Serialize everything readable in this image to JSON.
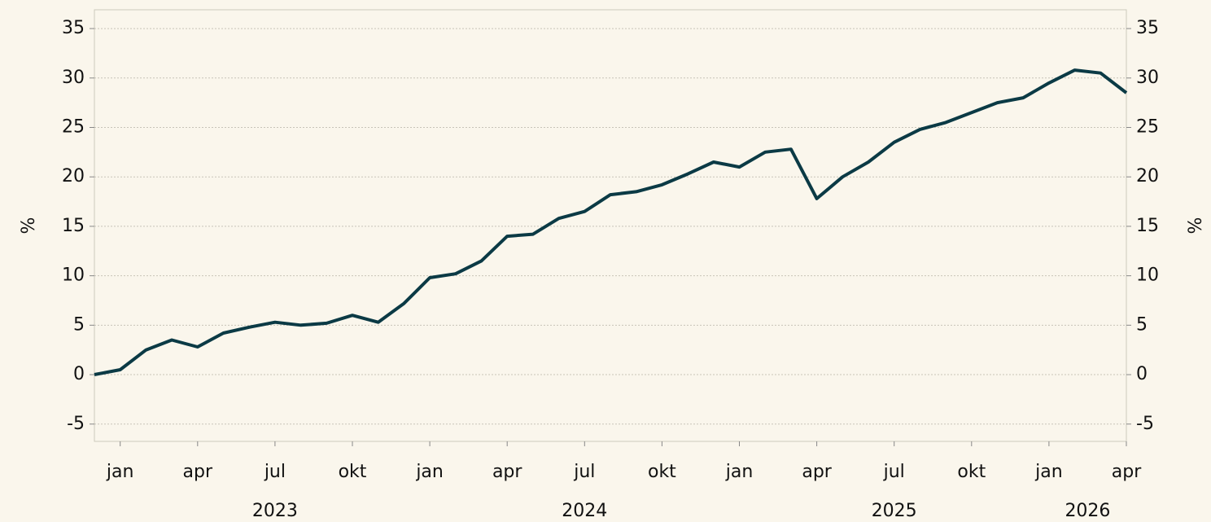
{
  "chart_data": {
    "type": "line",
    "ylabel": "%",
    "y2label": "%",
    "x": [
      "2022-12",
      "2023-01",
      "2023-02",
      "2023-03",
      "2023-04",
      "2023-05",
      "2023-06",
      "2023-07",
      "2023-08",
      "2023-09",
      "2023-10",
      "2023-11",
      "2023-12",
      "2024-01",
      "2024-02",
      "2024-03",
      "2024-04",
      "2024-05",
      "2024-06",
      "2024-07",
      "2024-08",
      "2024-09",
      "2024-10",
      "2024-11",
      "2024-12",
      "2025-01",
      "2025-02",
      "2025-03",
      "2025-04",
      "2025-05",
      "2025-06",
      "2025-07",
      "2025-08",
      "2025-09",
      "2025-10",
      "2025-11",
      "2025-12",
      "2026-01",
      "2026-02",
      "2026-03",
      "2026-04"
    ],
    "series": [
      {
        "color": "#0b3a45",
        "values": [
          0,
          0.5,
          2.5,
          3.5,
          2.8,
          4.2,
          4.8,
          5.3,
          5.0,
          5.2,
          6.0,
          5.3,
          7.2,
          9.8,
          10.2,
          11.5,
          14.0,
          14.2,
          15.8,
          16.5,
          18.2,
          18.5,
          19.2,
          20.3,
          21.5,
          21.0,
          22.5,
          22.8,
          17.8,
          20.0,
          21.5,
          23.5,
          24.8,
          25.5,
          26.5,
          27.5,
          28.0,
          29.5,
          30.8,
          30.5,
          28.5
        ]
      }
    ],
    "xlim": [
      "2022-12",
      "2026-04"
    ],
    "xticks": [
      {
        "value": "2023-01",
        "label": "jan"
      },
      {
        "value": "2023-04",
        "label": "apr"
      },
      {
        "value": "2023-07",
        "label": "jul"
      },
      {
        "value": "2023-10",
        "label": "okt"
      },
      {
        "value": "2024-01",
        "label": "jan"
      },
      {
        "value": "2024-04",
        "label": "apr"
      },
      {
        "value": "2024-07",
        "label": "jul"
      },
      {
        "value": "2024-10",
        "label": "okt"
      },
      {
        "value": "2025-01",
        "label": "jan"
      },
      {
        "value": "2025-04",
        "label": "apr"
      },
      {
        "value": "2025-07",
        "label": "jul"
      },
      {
        "value": "2025-10",
        "label": "okt"
      },
      {
        "value": "2026-01",
        "label": "jan"
      },
      {
        "value": "2026-04",
        "label": "apr"
      }
    ],
    "years": [
      "2023",
      "2024",
      "2025",
      "2026"
    ],
    "ylim": [
      -6.75,
      36.9
    ],
    "yticks": [
      35,
      30,
      25,
      20,
      15,
      10,
      5,
      0,
      -5
    ],
    "y2lim": [
      -6.75,
      36.9
    ],
    "y2ticks": [
      35,
      30,
      25,
      20,
      15,
      10,
      5,
      0,
      -5
    ],
    "grid": true
  }
}
